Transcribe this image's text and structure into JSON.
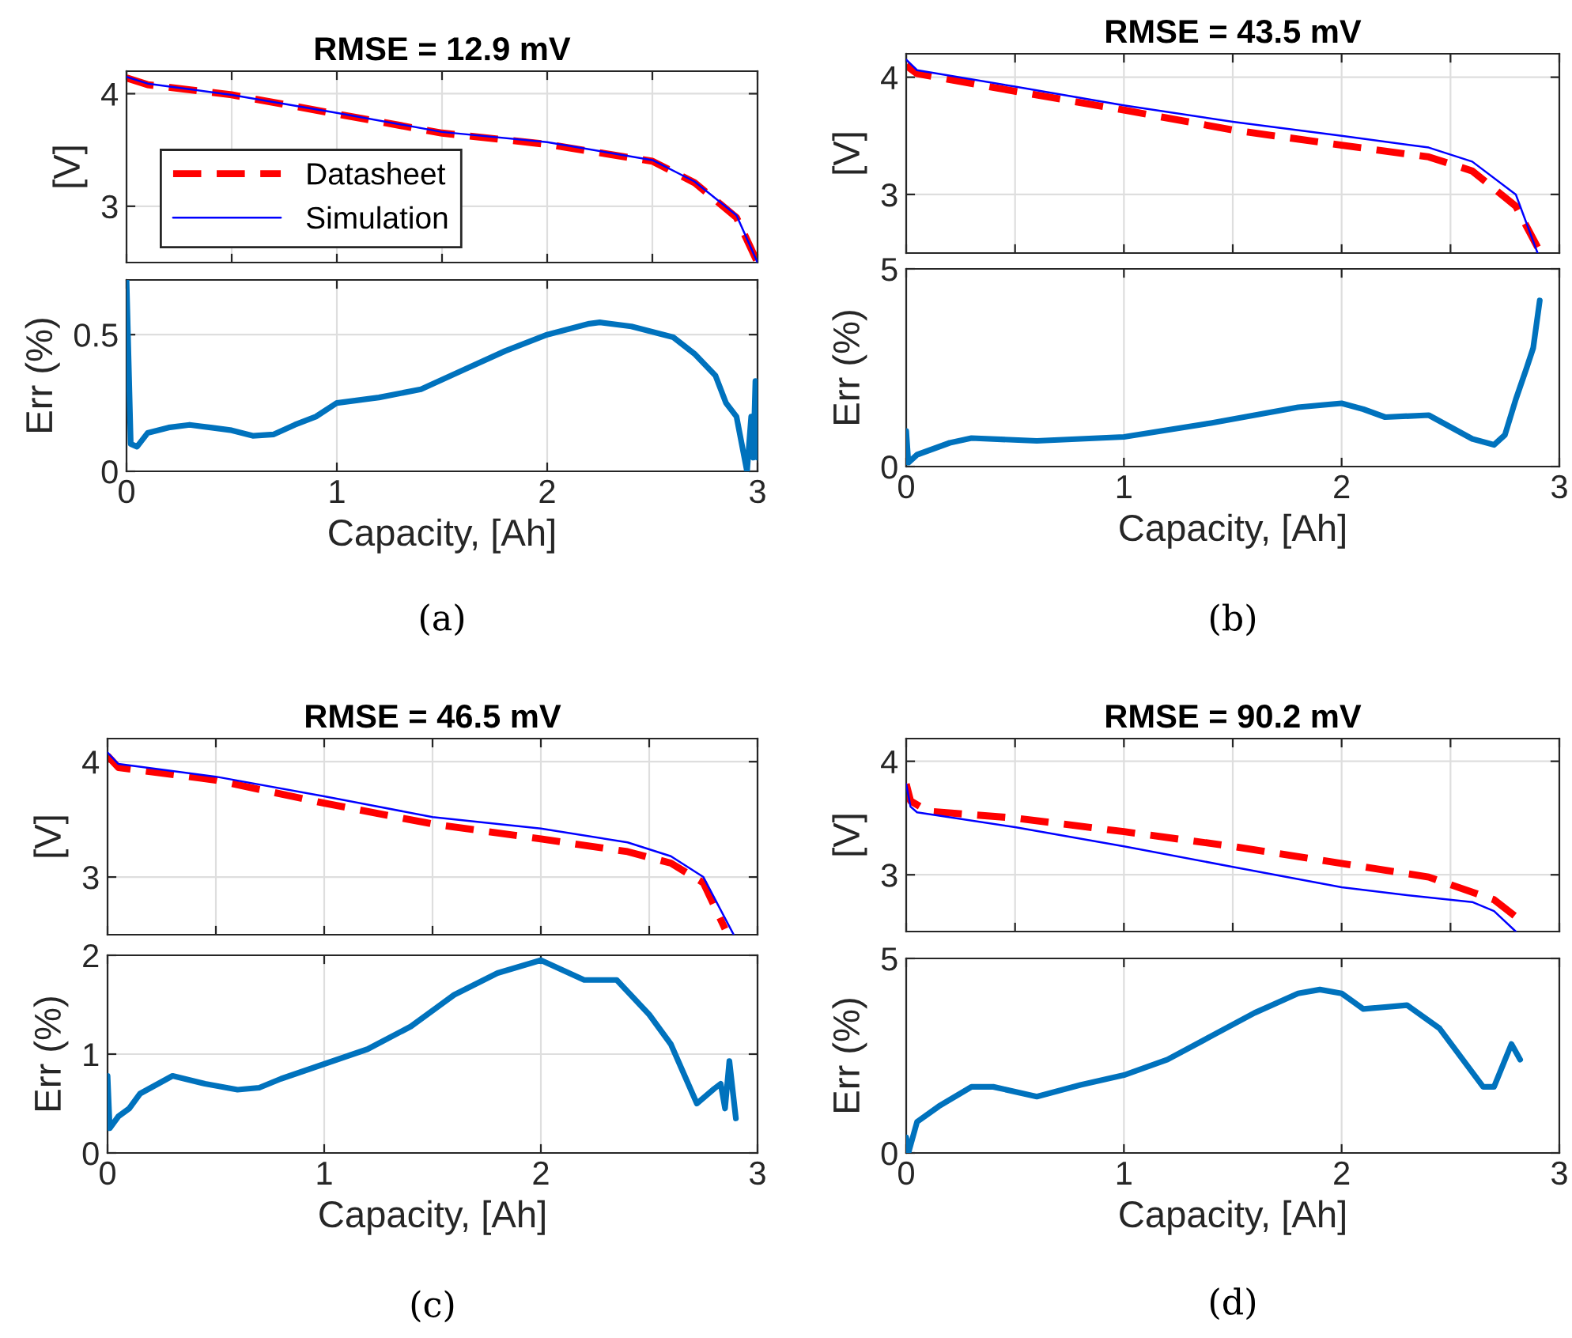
{
  "chart_data": [
    {
      "type": "line",
      "title": "RMSE = 12.9 mV",
      "ylabel": "[V]",
      "xlim": [
        0,
        3
      ],
      "xticks": [
        {
          "value": 0,
          "label": null
        },
        {
          "value": 0.5,
          "label": null
        },
        {
          "value": 1,
          "label": null
        },
        {
          "value": 1.5,
          "label": null
        },
        {
          "value": 2,
          "label": null
        },
        {
          "value": 2.5,
          "label": null
        },
        {
          "value": 3,
          "label": null
        }
      ],
      "ylim": [
        2.5,
        4.2
      ],
      "yticks": [
        3,
        4
      ],
      "grid": true,
      "tick_labels": "y",
      "legend": "bottom left",
      "series": [
        {
          "name": "Datasheet",
          "color": "#ff0000",
          "line_style": "dashed",
          "x": [
            0,
            0.1,
            0.5,
            1.0,
            1.5,
            2.0,
            2.5,
            2.7,
            2.9,
            3.0
          ],
          "values": [
            4.14,
            4.08,
            3.99,
            3.82,
            3.65,
            3.55,
            3.4,
            3.21,
            2.9,
            2.5
          ]
        },
        {
          "name": "Simulation",
          "color": "#0000ff",
          "line_style": "solid",
          "x": [
            0,
            0.1,
            0.5,
            1.0,
            1.5,
            2.0,
            2.5,
            2.7,
            2.9,
            3.0
          ],
          "values": [
            4.15,
            4.09,
            3.99,
            3.83,
            3.66,
            3.57,
            3.41,
            3.22,
            2.92,
            2.5
          ]
        }
      ]
    },
    {
      "type": "line",
      "ylabel": "Err (%)",
      "xlabel": "Capacity, [Ah]",
      "annotations": [
        "(a)"
      ],
      "xlim": [
        0,
        3
      ],
      "xticks": [
        0,
        1,
        2,
        3
      ],
      "ylim": [
        0,
        0.7
      ],
      "yticks": [
        0,
        0.5
      ],
      "grid": true,
      "series": [
        {
          "color": "#0072bd",
          "line_style": "solid",
          "x": [
            0,
            0.02,
            0.05,
            0.1,
            0.2,
            0.3,
            0.4,
            0.5,
            0.6,
            0.7,
            0.8,
            0.9,
            1.0,
            1.2,
            1.4,
            1.6,
            1.8,
            2.0,
            2.2,
            2.25,
            2.4,
            2.6,
            2.7,
            2.8,
            2.85,
            2.9,
            2.93,
            2.95,
            2.97,
            2.98,
            2.99,
            3.0
          ],
          "values": [
            0.7,
            0.1,
            0.09,
            0.14,
            0.16,
            0.17,
            0.16,
            0.15,
            0.13,
            0.135,
            0.17,
            0.2,
            0.25,
            0.27,
            0.3,
            0.37,
            0.44,
            0.5,
            0.54,
            0.545,
            0.53,
            0.49,
            0.43,
            0.35,
            0.25,
            0.2,
            0.08,
            0.0,
            0.2,
            0.05,
            0.33,
            0.05
          ]
        }
      ]
    },
    {
      "type": "line",
      "title": "RMSE = 43.5 mV",
      "ylabel": "[V]",
      "xlim": [
        0,
        3
      ],
      "xticks": [
        {
          "value": 0,
          "label": null
        },
        {
          "value": 0.5,
          "label": null
        },
        {
          "value": 1,
          "label": null
        },
        {
          "value": 1.5,
          "label": null
        },
        {
          "value": 2,
          "label": null
        },
        {
          "value": 2.5,
          "label": null
        },
        {
          "value": 3,
          "label": null
        }
      ],
      "ylim": [
        2.5,
        4.2
      ],
      "yticks": [
        3,
        4
      ],
      "grid": true,
      "tick_labels": "y",
      "series": [
        {
          "color": "#ff0000",
          "line_style": "dashed",
          "x": [
            0,
            0.05,
            0.5,
            1.0,
            1.5,
            2.0,
            2.4,
            2.6,
            2.8,
            2.9
          ],
          "values": [
            4.1,
            4.03,
            3.88,
            3.72,
            3.55,
            3.42,
            3.32,
            3.2,
            2.9,
            2.55
          ]
        },
        {
          "color": "#0000ff",
          "line_style": "solid",
          "x": [
            0,
            0.05,
            0.5,
            1.0,
            1.5,
            2.0,
            2.4,
            2.6,
            2.8,
            2.9
          ],
          "values": [
            4.15,
            4.06,
            3.92,
            3.76,
            3.62,
            3.5,
            3.4,
            3.28,
            3.0,
            2.5
          ]
        }
      ]
    },
    {
      "type": "line",
      "ylabel": "Err (%)",
      "xlabel": "Capacity, [Ah]",
      "annotations": [
        "(b)"
      ],
      "xlim": [
        0,
        3
      ],
      "xticks": [
        0,
        1,
        2,
        3
      ],
      "ylim": [
        0,
        5
      ],
      "yticks": [
        0,
        5
      ],
      "grid": true,
      "series": [
        {
          "color": "#0072bd",
          "line_style": "solid",
          "x": [
            0,
            0.01,
            0.05,
            0.2,
            0.3,
            0.6,
            1.0,
            1.4,
            1.6,
            1.8,
            2.0,
            2.1,
            2.2,
            2.4,
            2.5,
            2.6,
            2.7,
            2.75,
            2.8,
            2.85,
            2.88,
            2.91
          ],
          "values": [
            0.9,
            0.1,
            0.3,
            0.6,
            0.72,
            0.65,
            0.75,
            1.1,
            1.3,
            1.5,
            1.6,
            1.45,
            1.25,
            1.3,
            1.0,
            0.7,
            0.55,
            0.8,
            1.7,
            2.5,
            3.0,
            4.2
          ]
        }
      ]
    },
    {
      "type": "line",
      "title": "RMSE = 46.5 mV",
      "ylabel": "[V]",
      "xlim": [
        0,
        3
      ],
      "xticks": [
        {
          "value": 0,
          "label": null
        },
        {
          "value": 0.5,
          "label": null
        },
        {
          "value": 1,
          "label": null
        },
        {
          "value": 1.5,
          "label": null
        },
        {
          "value": 2,
          "label": null
        },
        {
          "value": 2.5,
          "label": null
        },
        {
          "value": 3,
          "label": null
        }
      ],
      "ylim": [
        2.5,
        4.2
      ],
      "yticks": [
        3,
        4
      ],
      "grid": true,
      "tick_labels": "y",
      "series": [
        {
          "color": "#ff0000",
          "line_style": "dashed",
          "x": [
            0,
            0.05,
            0.5,
            1.0,
            1.5,
            2.0,
            2.4,
            2.6,
            2.75,
            2.85
          ],
          "values": [
            4.05,
            3.95,
            3.84,
            3.64,
            3.46,
            3.33,
            3.22,
            3.12,
            2.95,
            2.55
          ]
        },
        {
          "color": "#0000ff",
          "line_style": "solid",
          "x": [
            0,
            0.05,
            0.5,
            1.0,
            1.5,
            2.0,
            2.4,
            2.6,
            2.75,
            2.89
          ],
          "values": [
            4.08,
            3.98,
            3.87,
            3.7,
            3.52,
            3.42,
            3.3,
            3.18,
            3.0,
            2.5
          ]
        }
      ]
    },
    {
      "type": "line",
      "ylabel": "Err (%)",
      "xlabel": "Capacity, [Ah]",
      "annotations": [
        "(c)"
      ],
      "xlim": [
        0,
        3
      ],
      "xticks": [
        0,
        1,
        2,
        3
      ],
      "ylim": [
        0,
        2
      ],
      "yticks": [
        0,
        1,
        2
      ],
      "grid": true,
      "series": [
        {
          "color": "#0072bd",
          "line_style": "solid",
          "x": [
            0,
            0.01,
            0.05,
            0.1,
            0.15,
            0.3,
            0.45,
            0.6,
            0.7,
            0.8,
            1.0,
            1.2,
            1.4,
            1.6,
            1.8,
            2.0,
            2.2,
            2.35,
            2.5,
            2.6,
            2.72,
            2.8,
            2.83,
            2.85,
            2.87,
            2.9
          ],
          "values": [
            0.78,
            0.25,
            0.37,
            0.45,
            0.6,
            0.78,
            0.7,
            0.64,
            0.66,
            0.75,
            0.9,
            1.05,
            1.28,
            1.6,
            1.82,
            1.95,
            1.75,
            1.75,
            1.4,
            1.1,
            0.5,
            0.65,
            0.7,
            0.45,
            0.93,
            0.35
          ]
        }
      ]
    },
    {
      "type": "line",
      "title": "RMSE = 90.2 mV",
      "ylabel": "[V]",
      "xlim": [
        0,
        3
      ],
      "xticks": [
        {
          "value": 0,
          "label": null
        },
        {
          "value": 0.5,
          "label": null
        },
        {
          "value": 1,
          "label": null
        },
        {
          "value": 1.5,
          "label": null
        },
        {
          "value": 2,
          "label": null
        },
        {
          "value": 2.5,
          "label": null
        },
        {
          "value": 3,
          "label": null
        }
      ],
      "ylim": [
        2.5,
        4.2
      ],
      "yticks": [
        3,
        4
      ],
      "grid": true,
      "tick_labels": "y",
      "series": [
        {
          "color": "#ff0000",
          "line_style": "dashed",
          "x": [
            0,
            0.02,
            0.1,
            0.5,
            1.0,
            1.5,
            2.0,
            2.4,
            2.7,
            2.82
          ],
          "values": [
            3.8,
            3.65,
            3.56,
            3.5,
            3.38,
            3.25,
            3.1,
            2.98,
            2.78,
            2.6
          ]
        },
        {
          "color": "#0000ff",
          "line_style": "solid",
          "x": [
            0,
            0.02,
            0.05,
            0.5,
            1.0,
            1.5,
            2.0,
            2.3,
            2.6,
            2.7,
            2.8
          ],
          "values": [
            3.8,
            3.6,
            3.55,
            3.42,
            3.25,
            3.07,
            2.89,
            2.82,
            2.76,
            2.68,
            2.5
          ]
        }
      ]
    },
    {
      "type": "line",
      "ylabel": "Err (%)",
      "xlabel": "Capacity, [Ah]",
      "annotations": [
        "(d)"
      ],
      "xlim": [
        0,
        3
      ],
      "xticks": [
        0,
        1,
        2,
        3
      ],
      "ylim": [
        0,
        5
      ],
      "yticks": [
        0,
        5
      ],
      "grid": true,
      "series": [
        {
          "color": "#0072bd",
          "line_style": "solid",
          "x": [
            0,
            0.01,
            0.05,
            0.15,
            0.3,
            0.4,
            0.6,
            0.8,
            1.0,
            1.2,
            1.4,
            1.6,
            1.8,
            1.9,
            2.0,
            2.1,
            2.3,
            2.45,
            2.65,
            2.7,
            2.78,
            2.82
          ],
          "values": [
            0.4,
            0.0,
            0.8,
            1.2,
            1.7,
            1.7,
            1.45,
            1.75,
            2.0,
            2.4,
            3.0,
            3.6,
            4.1,
            4.2,
            4.1,
            3.7,
            3.8,
            3.2,
            1.7,
            1.7,
            2.8,
            2.4
          ]
        }
      ]
    }
  ]
}
